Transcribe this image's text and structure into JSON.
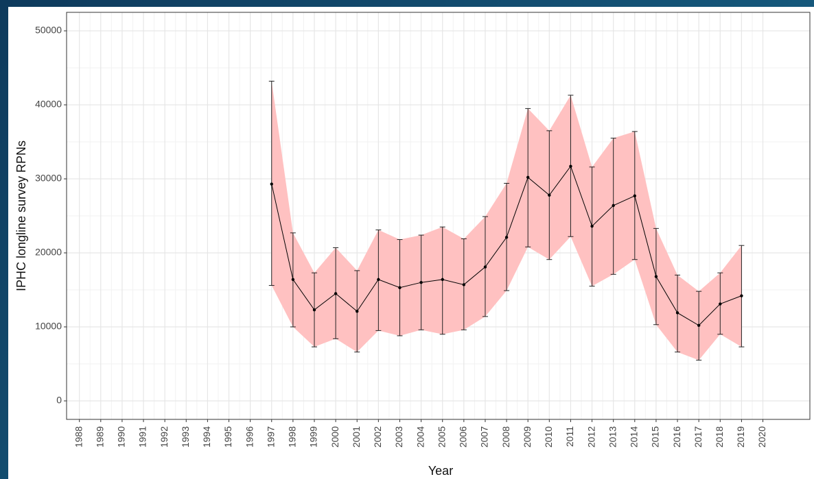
{
  "chart_data": {
    "type": "line",
    "x_label": "Year",
    "y_label": "IPHC longline survey RPNs",
    "x": [
      1997,
      1998,
      1999,
      2000,
      2001,
      2002,
      2003,
      2004,
      2005,
      2006,
      2007,
      2008,
      2009,
      2010,
      2011,
      2012,
      2013,
      2014,
      2015,
      2016,
      2017,
      2018,
      2019
    ],
    "series": [
      {
        "color": "#000000",
        "band_color": "#ffc1c1",
        "values": [
          29300,
          16400,
          12300,
          14500,
          12100,
          16400,
          15300,
          16000,
          16400,
          15700,
          18100,
          22100,
          30200,
          27800,
          31700,
          23600,
          26400,
          27700,
          16800,
          11900,
          10200,
          13100,
          14200
        ],
        "lower": [
          15600,
          10000,
          7300,
          8400,
          6600,
          9500,
          8800,
          9600,
          9000,
          9600,
          11400,
          14900,
          20800,
          19100,
          22200,
          15500,
          17100,
          19100,
          10300,
          6600,
          5500,
          9000,
          7300
        ],
        "upper": [
          43200,
          22700,
          17300,
          20700,
          17600,
          23100,
          21800,
          22400,
          23500,
          21900,
          24900,
          29400,
          39500,
          36500,
          41300,
          31600,
          35500,
          36400,
          23300,
          17000,
          14800,
          17300,
          21000
        ]
      }
    ],
    "xlim": [
      1987.4,
      2022.2
    ],
    "ylim": [
      -2500,
      52500
    ],
    "xticks": [
      1988,
      1989,
      1990,
      1991,
      1992,
      1993,
      1994,
      1995,
      1996,
      1997,
      1998,
      1999,
      2000,
      2001,
      2002,
      2003,
      2004,
      2005,
      2006,
      2007,
      2008,
      2009,
      2010,
      2011,
      2012,
      2013,
      2014,
      2015,
      2016,
      2017,
      2018,
      2019,
      2020
    ],
    "yticks": [
      0,
      10000,
      20000,
      30000,
      40000,
      50000
    ],
    "grid": true,
    "minor_grid": true
  }
}
